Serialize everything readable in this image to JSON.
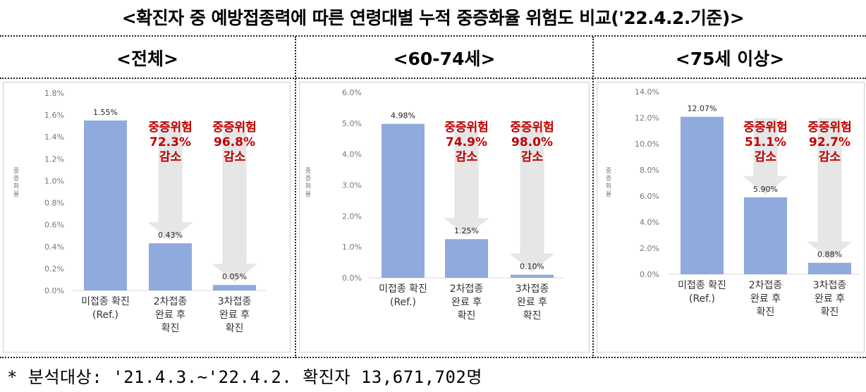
{
  "title": "<확진자 중 예방접종력에 따른 연령대별 누적 중증화율 위험도 비교('22.4.2.기준)>",
  "footnote": "* 분석대상: '21.4.3.~'22.4.2. 확진자 13,671,702명",
  "colors": {
    "bar": "#8faadc",
    "reduction_text": "#c00000",
    "arrow": "#e6e6e6",
    "axis_text": "#777777"
  },
  "chart_data": [
    {
      "type": "bar",
      "panel_title": "<전체>",
      "ylabel": "중증화율",
      "ylim": [
        0,
        1.8
      ],
      "yticks": [
        "1.8%",
        "1.6%",
        "1.4%",
        "1.2%",
        "1.0%",
        "0.8%",
        "0.6%",
        "0.4%",
        "0.2%",
        "0.0%"
      ],
      "categories": [
        [
          "미접종 확진",
          "(Ref.)"
        ],
        [
          "2차접종",
          "완료 후",
          "확진"
        ],
        [
          "3차접종",
          "완료 후",
          "확진"
        ]
      ],
      "values": [
        1.55,
        0.43,
        0.05
      ],
      "value_labels": [
        "1.55%",
        "0.43%",
        "0.05%"
      ],
      "annotations": [
        [
          "중증위험",
          "72.3%",
          "감소"
        ],
        [
          "중증위험",
          "96.8%",
          "감소"
        ]
      ]
    },
    {
      "type": "bar",
      "panel_title": "<60-74세>",
      "ylabel": "중증화율",
      "ylim": [
        0,
        6
      ],
      "yticks": [
        "6.0%",
        "5.0%",
        "4.0%",
        "3.0%",
        "2.0%",
        "1.0%",
        "0.0%"
      ],
      "categories": [
        [
          "미접종 확진",
          "(Ref.)"
        ],
        [
          "2차접종",
          "완료 후",
          "확진"
        ],
        [
          "3차접종",
          "완료 후",
          "확진"
        ]
      ],
      "values": [
        4.98,
        1.25,
        0.1
      ],
      "value_labels": [
        "4.98%",
        "1.25%",
        "0.10%"
      ],
      "annotations": [
        [
          "중증위험",
          "74.9%",
          "감소"
        ],
        [
          "중증위험",
          "98.0%",
          "감소"
        ]
      ]
    },
    {
      "type": "bar",
      "panel_title": "<75세 이상>",
      "ylabel": "중증화율",
      "ylim": [
        0,
        14
      ],
      "yticks": [
        "14.0%",
        "12.0%",
        "10.0%",
        "8.0%",
        "6.0%",
        "4.0%",
        "2.0%",
        "0.0%"
      ],
      "categories": [
        [
          "미접종 확진",
          "(Ref.)"
        ],
        [
          "2차접종",
          "완료 후",
          "확진"
        ],
        [
          "3차접종",
          "완료 후",
          "확진"
        ]
      ],
      "values": [
        12.07,
        5.9,
        0.88
      ],
      "value_labels": [
        "12.07%",
        "5.90%",
        "0.88%"
      ],
      "annotations": [
        [
          "중증위험",
          "51.1%",
          "감소"
        ],
        [
          "중증위험",
          "92.7%",
          "감소"
        ]
      ]
    }
  ]
}
